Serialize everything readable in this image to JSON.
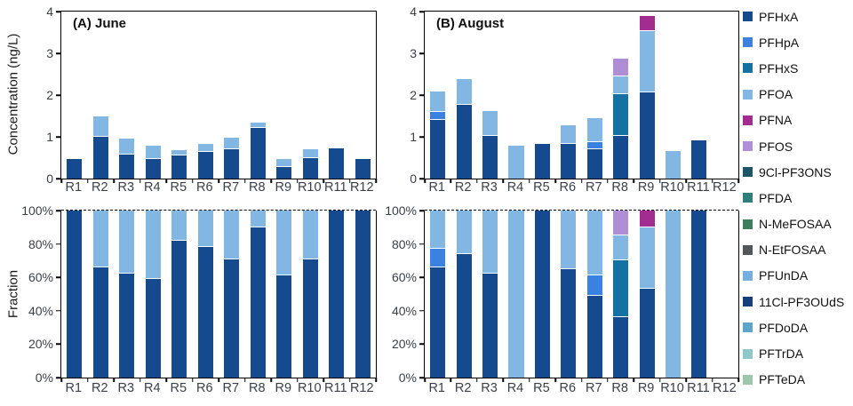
{
  "legend": {
    "position": "right",
    "items": [
      {
        "label": "PFHxA",
        "color": "#164A8E"
      },
      {
        "label": "PFHpA",
        "color": "#3B82E0"
      },
      {
        "label": "PFHxS",
        "color": "#1371A3"
      },
      {
        "label": "PFOA",
        "color": "#82B6E3"
      },
      {
        "label": "PFNA",
        "color": "#A32C90"
      },
      {
        "label": "PFOS",
        "color": "#AF8ED6"
      },
      {
        "label": "9Cl-PF3ONS",
        "color": "#1D5666"
      },
      {
        "label": "PFDA",
        "color": "#2E7E79"
      },
      {
        "label": "N-MeFOSAA",
        "color": "#3E7E5E"
      },
      {
        "label": "N-EtFOSAA",
        "color": "#53575A"
      },
      {
        "label": "PFUnDA",
        "color": "#76AFE0"
      },
      {
        "label": "11Cl-PF3OUdS",
        "color": "#153F7D"
      },
      {
        "label": "PFDoDA",
        "color": "#5CA4CB"
      },
      {
        "label": "PFTrDA",
        "color": "#8FC8C8"
      },
      {
        "label": "PFTeDA",
        "color": "#9DC7AC"
      }
    ]
  },
  "chart_data": [
    {
      "type": "bar",
      "stacked": true,
      "title": "(A) June",
      "ylabel": "Concentration (ng/L)",
      "ylim": [
        0,
        4
      ],
      "yticks": [
        0,
        1,
        2,
        3,
        4
      ],
      "ytick_suffix": "",
      "grid_top_dashed": false,
      "categories": [
        "R1",
        "R2",
        "R3",
        "R4",
        "R5",
        "R6",
        "R7",
        "R8",
        "R9",
        "R10",
        "R11",
        "R12"
      ],
      "series": [
        {
          "name": "PFHxA",
          "values": [
            0.47,
            1.0,
            0.58,
            0.46,
            0.56,
            0.64,
            0.7,
            1.21,
            0.28,
            0.49,
            0.73,
            0.46
          ]
        },
        {
          "name": "PFOA",
          "values": [
            0,
            0.5,
            0.38,
            0.33,
            0.13,
            0.2,
            0.28,
            0.14,
            0.18,
            0.21,
            0,
            0
          ]
        }
      ]
    },
    {
      "type": "bar",
      "stacked": true,
      "title": "(B) August",
      "ylabel": "",
      "ylim": [
        0,
        4
      ],
      "yticks": [
        0,
        1,
        2,
        3,
        4
      ],
      "ytick_suffix": "",
      "grid_top_dashed": false,
      "categories": [
        "R1",
        "R2",
        "R3",
        "R4",
        "R5",
        "R6",
        "R7",
        "R8",
        "R9",
        "R10",
        "R11",
        "R12"
      ],
      "series": [
        {
          "name": "PFHxA",
          "values": [
            1.4,
            1.77,
            1.03,
            0,
            0.83,
            0.83,
            0.71,
            1.03,
            2.07,
            0,
            0.92,
            0
          ]
        },
        {
          "name": "PFHpA",
          "values": [
            0.2,
            0,
            0,
            0,
            0,
            0,
            0.17,
            0,
            0,
            0,
            0,
            0
          ]
        },
        {
          "name": "PFHxS",
          "values": [
            0,
            0,
            0,
            0,
            0,
            0,
            0,
            0.99,
            0,
            0,
            0,
            0
          ]
        },
        {
          "name": "PFOA",
          "values": [
            0.48,
            0.61,
            0.59,
            0.78,
            0,
            0.45,
            0.57,
            0.43,
            1.46,
            0.66,
            0,
            0
          ]
        },
        {
          "name": "PFOS",
          "values": [
            0,
            0,
            0,
            0,
            0,
            0,
            0,
            0.43,
            0,
            0,
            0,
            0
          ]
        },
        {
          "name": "PFNA",
          "values": [
            0,
            0,
            0,
            0,
            0,
            0,
            0,
            0,
            0.37,
            0,
            0,
            0
          ]
        }
      ]
    },
    {
      "type": "bar",
      "stacked": true,
      "title": "",
      "ylabel": "Fraction",
      "ylim": [
        0,
        100
      ],
      "yticks": [
        0,
        20,
        40,
        60,
        80,
        100
      ],
      "ytick_suffix": "%",
      "grid_top_dashed": true,
      "categories": [
        "R1",
        "R2",
        "R3",
        "R4",
        "R5",
        "R6",
        "R7",
        "R8",
        "R9",
        "R10",
        "R11",
        "R12"
      ],
      "series": [
        {
          "name": "PFHxA",
          "values": [
            100,
            66,
            62,
            59,
            82,
            78,
            71,
            90,
            61,
            71,
            100,
            100
          ]
        },
        {
          "name": "PFOA",
          "values": [
            0,
            34,
            38,
            41,
            18,
            22,
            29,
            10,
            39,
            29,
            0,
            0
          ]
        }
      ]
    },
    {
      "type": "bar",
      "stacked": true,
      "title": "",
      "ylabel": "",
      "ylim": [
        0,
        100
      ],
      "yticks": [
        0,
        20,
        40,
        60,
        80,
        100
      ],
      "ytick_suffix": "%",
      "grid_top_dashed": true,
      "categories": [
        "R1",
        "R2",
        "R3",
        "R4",
        "R5",
        "R6",
        "R7",
        "R8",
        "R9",
        "R10",
        "R11",
        "R12"
      ],
      "series": [
        {
          "name": "PFHxA",
          "values": [
            66,
            74,
            62,
            0,
            100,
            65,
            49,
            36,
            53,
            0,
            100,
            0
          ]
        },
        {
          "name": "PFHpA",
          "values": [
            11,
            0,
            0,
            0,
            0,
            0,
            12,
            0,
            0,
            0,
            0,
            0
          ]
        },
        {
          "name": "PFHxS",
          "values": [
            0,
            0,
            0,
            0,
            0,
            0,
            0,
            34,
            0,
            0,
            0,
            0
          ]
        },
        {
          "name": "PFOA",
          "values": [
            23,
            26,
            38,
            100,
            0,
            35,
            39,
            15,
            37,
            100,
            0,
            0
          ]
        },
        {
          "name": "PFOS",
          "values": [
            0,
            0,
            0,
            0,
            0,
            0,
            0,
            15,
            0,
            0,
            0,
            0
          ]
        },
        {
          "name": "PFNA",
          "values": [
            0,
            0,
            0,
            0,
            0,
            0,
            0,
            0,
            10,
            0,
            0,
            0
          ]
        }
      ]
    }
  ]
}
